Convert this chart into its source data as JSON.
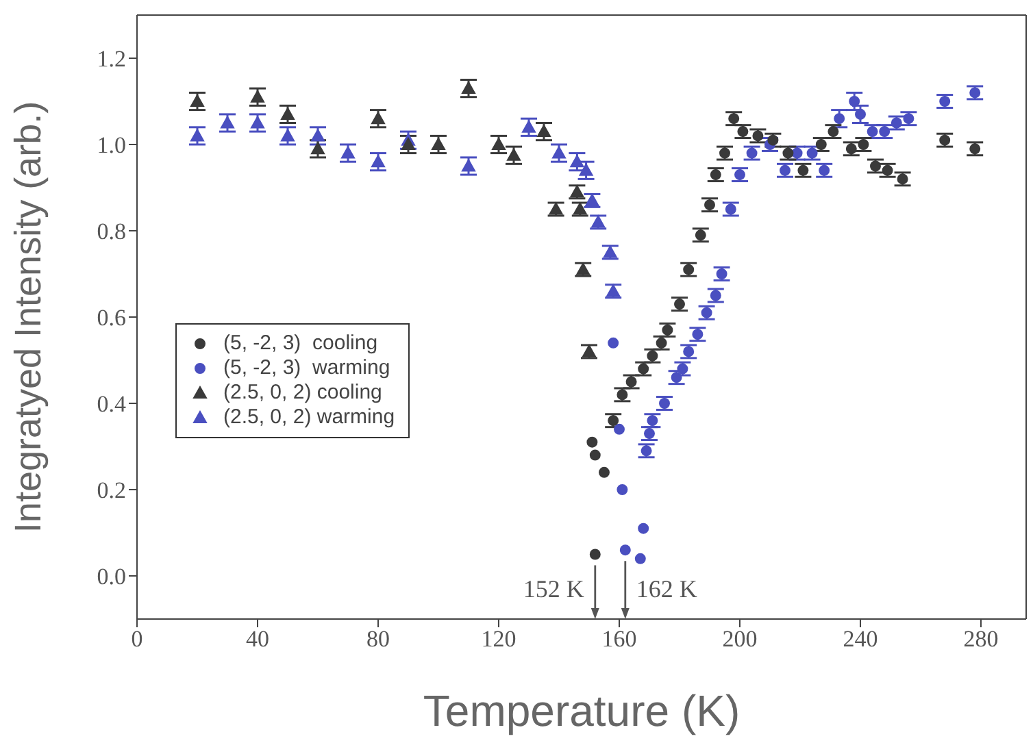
{
  "chart_data": {
    "type": "scatter",
    "xlabel": "Temperature (K)",
    "ylabel": "Integratyed Intensity (arb.)",
    "xlim": [
      0,
      295
    ],
    "xticks": [
      0,
      40,
      80,
      120,
      160,
      200,
      240,
      280
    ],
    "ylim": [
      -0.1,
      1.3
    ],
    "yticks": [
      {
        "value": 0,
        "label": "0.0"
      },
      {
        "value": 0.2,
        "label": "0.2"
      },
      {
        "value": 0.4,
        "label": "0.4"
      },
      {
        "value": 0.6,
        "label": "0.6"
      },
      {
        "value": 0.8,
        "label": "0.8"
      },
      {
        "value": 1.0,
        "label": "1.0"
      },
      {
        "value": 1.2,
        "label": "1.2"
      }
    ],
    "grid": false,
    "legend": "left",
    "annotations": [
      {
        "text": "152 K",
        "x": 152,
        "y": 0.05
      },
      {
        "text": "162 K",
        "x": 162,
        "y": 0.06
      }
    ],
    "series": [
      {
        "name": "(5, -2, 3)  cooling",
        "color": "#3a3a3a",
        "marker": "circle",
        "x": [
          151,
          152,
          152,
          155,
          158,
          161,
          164,
          168,
          171,
          174,
          176,
          180,
          183,
          187,
          190,
          192,
          195,
          198,
          201,
          206,
          211,
          216,
          221,
          227,
          231,
          237,
          241,
          245,
          249,
          254,
          268,
          278
        ],
        "values": [
          0.31,
          0.28,
          0.05,
          0.24,
          0.36,
          0.42,
          0.45,
          0.48,
          0.51,
          0.54,
          0.57,
          0.63,
          0.71,
          0.79,
          0.86,
          0.93,
          0.98,
          1.06,
          1.03,
          1.02,
          1.01,
          0.98,
          0.94,
          1.0,
          1.03,
          0.99,
          1.0,
          0.95,
          0.94,
          0.92,
          1.01,
          0.99
        ],
        "errors": [
          null,
          null,
          null,
          null,
          0.015,
          0.015,
          0.015,
          0.015,
          0.015,
          0.015,
          0.015,
          0.015,
          0.015,
          0.015,
          0.015,
          0.015,
          0.015,
          0.015,
          0.015,
          0.015,
          0.015,
          0.015,
          0.015,
          0.015,
          0.015,
          0.015,
          0.015,
          0.015,
          0.015,
          0.015,
          0.015,
          0.015
        ]
      },
      {
        "name": "(5, -2, 3)  warming",
        "color": "#4a4fc0",
        "marker": "circle",
        "x": [
          158,
          160,
          161,
          162,
          167,
          168,
          169,
          170,
          171,
          175,
          179,
          181,
          183,
          186,
          189,
          192,
          194,
          197,
          200,
          204,
          210,
          215,
          219,
          224,
          228,
          233,
          238,
          240,
          244,
          248,
          252,
          256,
          268,
          278
        ],
        "values": [
          0.54,
          0.34,
          0.2,
          0.06,
          0.04,
          0.11,
          0.29,
          0.33,
          0.36,
          0.4,
          0.46,
          0.48,
          0.52,
          0.56,
          0.61,
          0.65,
          0.7,
          0.85,
          0.93,
          0.98,
          1.0,
          0.94,
          0.98,
          0.98,
          0.94,
          1.06,
          1.1,
          1.07,
          1.03,
          1.03,
          1.05,
          1.06,
          1.1,
          1.12
        ],
        "errors": [
          null,
          null,
          null,
          null,
          null,
          null,
          0.015,
          0.015,
          0.015,
          0.015,
          0.015,
          0.015,
          0.015,
          0.015,
          0.015,
          0.015,
          0.015,
          0.015,
          0.015,
          0.015,
          0.015,
          0.015,
          0.015,
          0.015,
          0.015,
          0.02,
          0.02,
          0.02,
          0.015,
          0.015,
          0.015,
          0.015,
          0.015,
          0.015
        ]
      },
      {
        "name": "(2.5, 0, 2) cooling",
        "color": "#3a3a3a",
        "marker": "triangle",
        "x": [
          20,
          40,
          50,
          60,
          80,
          90,
          100,
          110,
          120,
          125,
          135,
          139,
          146,
          147,
          148,
          150
        ],
        "values": [
          1.1,
          1.11,
          1.07,
          0.99,
          1.06,
          1.0,
          1.0,
          1.13,
          1.0,
          0.975,
          1.03,
          0.85,
          0.89,
          0.85,
          0.71,
          0.52
        ],
        "errors": [
          0.02,
          0.02,
          0.02,
          0.02,
          0.02,
          0.02,
          0.02,
          0.02,
          0.02,
          0.02,
          0.02,
          0.015,
          0.015,
          0.015,
          0.015,
          0.015
        ]
      },
      {
        "name": "(2.5, 0, 2) warming",
        "color": "#4a4fc0",
        "marker": "triangle",
        "x": [
          20,
          30,
          40,
          50,
          60,
          70,
          80,
          90,
          100,
          110,
          120,
          130,
          140,
          146,
          149,
          151,
          153,
          157,
          158
        ],
        "values": [
          1.02,
          1.05,
          1.05,
          1.02,
          1.02,
          0.98,
          0.96,
          1.01,
          null,
          0.95,
          null,
          1.04,
          0.98,
          0.96,
          0.94,
          0.87,
          0.82,
          0.75,
          0.66
        ],
        "errors": [
          0.02,
          0.02,
          0.02,
          0.02,
          0.02,
          0.02,
          0.02,
          0.02,
          null,
          0.02,
          null,
          0.02,
          0.02,
          0.02,
          0.02,
          0.015,
          0.015,
          0.015,
          0.015
        ]
      }
    ]
  }
}
